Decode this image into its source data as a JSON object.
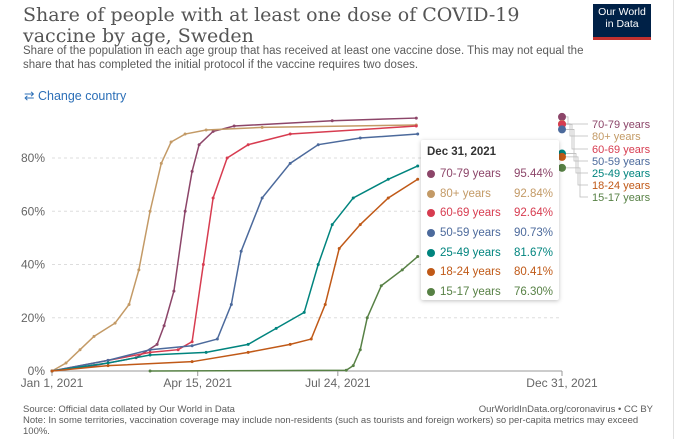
{
  "header": {
    "title": "Share of people with at least one dose of COVID-19 vaccine by age, Sweden",
    "subtitle": "Share of the population in each age group that has received at least one vaccine dose. This may not equal the share that has completed the initial protocol if the vaccine requires two doses.",
    "logo": "Our World in Data",
    "change_country": "Change country",
    "change_icon": "swap-arrows-icon"
  },
  "tooltip": {
    "date": "Dec 31, 2021",
    "rows": [
      {
        "name": "70-79 years",
        "value": "95.44%"
      },
      {
        "name": "80+ years",
        "value": "92.84%"
      },
      {
        "name": "60-69 years",
        "value": "92.64%"
      },
      {
        "name": "50-59 years",
        "value": "90.73%"
      },
      {
        "name": "25-49 years",
        "value": "81.67%"
      },
      {
        "name": "18-24 years",
        "value": "80.41%"
      },
      {
        "name": "15-17 years",
        "value": "76.30%"
      }
    ]
  },
  "footer": {
    "source": "Source: Official data collated by Our World in Data",
    "credit": "OurWorldInData.org/coronavirus • CC BY",
    "note": "Note: In some territories, vaccination coverage may include non-residents (such as tourists and foreign workers) so per-capita metrics may exceed 100%."
  },
  "chart_data": {
    "type": "line",
    "title": "Share of people with at least one dose of COVID-19 vaccine by age, Sweden",
    "xlabel": "",
    "ylabel": "",
    "x_unit": "days since Jan 1, 2021",
    "xlim": [
      0,
      364
    ],
    "ylim": [
      0,
      100
    ],
    "x_ticks": [
      {
        "day": 0,
        "label": "Jan 1, 2021"
      },
      {
        "day": 104,
        "label": "Apr 15, 2021"
      },
      {
        "day": 204,
        "label": "Jul 24, 2021"
      },
      {
        "day": 364,
        "label": "Dec 31, 2021"
      }
    ],
    "y_ticks": [
      {
        "v": 0,
        "label": "0%"
      },
      {
        "v": 20,
        "label": "20%"
      },
      {
        "v": 40,
        "label": "40%"
      },
      {
        "v": 60,
        "label": "60%"
      },
      {
        "v": 80,
        "label": "80%"
      }
    ],
    "legend_placement": "right",
    "series": [
      {
        "name": "70-79 years",
        "color": "#8c4569",
        "points": [
          [
            0,
            0
          ],
          [
            30,
            2
          ],
          [
            60,
            5
          ],
          [
            75,
            10
          ],
          [
            80,
            17
          ],
          [
            87,
            30
          ],
          [
            95,
            60
          ],
          [
            100,
            75
          ],
          [
            105,
            85
          ],
          [
            115,
            90
          ],
          [
            130,
            92
          ],
          [
            200,
            94
          ],
          [
            260,
            95
          ],
          [
            364,
            95.44
          ]
        ]
      },
      {
        "name": "80+ years",
        "color": "#c39a66",
        "points": [
          [
            0,
            0
          ],
          [
            10,
            3
          ],
          [
            20,
            8
          ],
          [
            30,
            13
          ],
          [
            45,
            18
          ],
          [
            55,
            25
          ],
          [
            62,
            38
          ],
          [
            70,
            60
          ],
          [
            78,
            78
          ],
          [
            85,
            86
          ],
          [
            95,
            89
          ],
          [
            110,
            90.5
          ],
          [
            150,
            91.5
          ],
          [
            260,
            92.4
          ],
          [
            364,
            92.84
          ]
        ]
      },
      {
        "name": "60-69 years",
        "color": "#d73c50",
        "points": [
          [
            0,
            0
          ],
          [
            40,
            4
          ],
          [
            70,
            7
          ],
          [
            90,
            8
          ],
          [
            100,
            11
          ],
          [
            108,
            40
          ],
          [
            115,
            65
          ],
          [
            125,
            80
          ],
          [
            140,
            85
          ],
          [
            170,
            89
          ],
          [
            260,
            92
          ],
          [
            364,
            92.64
          ]
        ]
      },
      {
        "name": "50-59 years",
        "color": "#4c6a9c",
        "points": [
          [
            0,
            0
          ],
          [
            40,
            4
          ],
          [
            70,
            8
          ],
          [
            100,
            9.5
          ],
          [
            118,
            12
          ],
          [
            128,
            25
          ],
          [
            135,
            45
          ],
          [
            150,
            65
          ],
          [
            170,
            78
          ],
          [
            190,
            85
          ],
          [
            220,
            87.5
          ],
          [
            261,
            89
          ],
          [
            364,
            90.73
          ]
        ]
      },
      {
        "name": "25-49 years",
        "color": "#00847e",
        "points": [
          [
            0,
            0
          ],
          [
            40,
            3
          ],
          [
            70,
            6
          ],
          [
            110,
            7
          ],
          [
            140,
            10
          ],
          [
            160,
            16
          ],
          [
            180,
            22
          ],
          [
            190,
            40
          ],
          [
            200,
            55
          ],
          [
            215,
            65
          ],
          [
            240,
            72
          ],
          [
            261,
            77
          ],
          [
            364,
            81.67
          ]
        ]
      },
      {
        "name": "18-24 years",
        "color": "#c05917",
        "points": [
          [
            0,
            0
          ],
          [
            40,
            2
          ],
          [
            100,
            3.5
          ],
          [
            140,
            7
          ],
          [
            170,
            10
          ],
          [
            185,
            12
          ],
          [
            195,
            25
          ],
          [
            205,
            46
          ],
          [
            220,
            55
          ],
          [
            240,
            65
          ],
          [
            261,
            72
          ],
          [
            364,
            80.41
          ]
        ]
      },
      {
        "name": "15-17 years",
        "color": "#578145",
        "points": [
          [
            70,
            0
          ],
          [
            210,
            0.3
          ],
          [
            215,
            2
          ],
          [
            220,
            8
          ],
          [
            225,
            20
          ],
          [
            235,
            32
          ],
          [
            250,
            38
          ],
          [
            261,
            43
          ],
          [
            364,
            76.3
          ]
        ]
      }
    ]
  }
}
